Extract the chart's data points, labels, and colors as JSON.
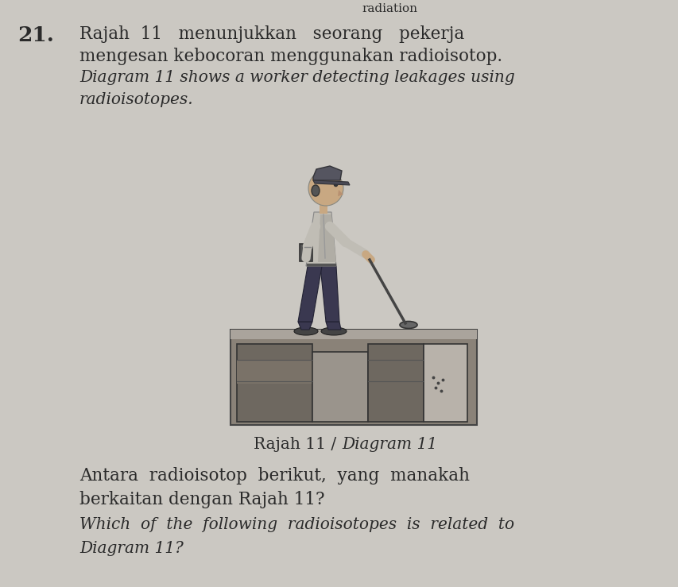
{
  "bg_color": "#cbc8c2",
  "font_color": "#2a2a2a",
  "question_number": "21.",
  "malay_line1": "Rajah  11   menunjukkan   seorang   pekerja",
  "malay_line2": "mengesan kebocoran menggunakan radioisotop.",
  "eng_line1": "Diagram 11 shows a worker detecting leakages using",
  "eng_line2": "radioisotopes.",
  "caption_roman": "Rajah 11 / ",
  "caption_italic": "Diagram 11",
  "antara_line1": "Antara  radioisotop  berikut,  yang  manakah",
  "antara_line2": "berkaitan dengan Rajah 11?",
  "which_line1": "Which  of  the  following  radioisotopes  is  related  to",
  "which_line2": "Diagram 11?",
  "top_text": "radiation"
}
